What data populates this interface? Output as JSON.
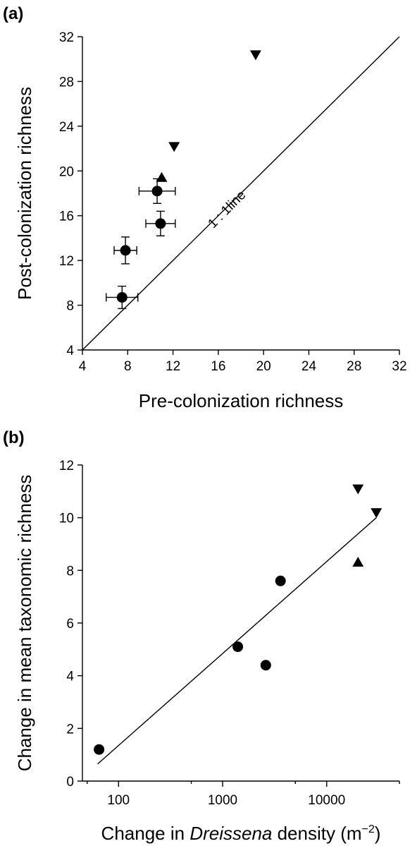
{
  "chart_data": [
    {
      "type": "scatter",
      "panel_label": "(a)",
      "xlabel": "Pre-colonization richness",
      "ylabel": "Post-colonization richness",
      "xlim": [
        4,
        32
      ],
      "ylim": [
        4,
        32
      ],
      "xticks": [
        4,
        8,
        12,
        16,
        20,
        24,
        28,
        32
      ],
      "yticks": [
        4,
        8,
        12,
        16,
        20,
        24,
        28,
        32
      ],
      "xtick_labels": [
        "4",
        "8",
        "12",
        "16",
        "20",
        "24",
        "28",
        "32"
      ],
      "ytick_labels": [
        "4",
        "8",
        "12",
        "16",
        "20",
        "24",
        "28",
        "32"
      ],
      "reference_line": {
        "label": "1 : 1line",
        "from": [
          4,
          4
        ],
        "to": [
          32,
          32
        ]
      },
      "series": [
        {
          "marker": "circle",
          "points": [
            {
              "x": 7.5,
              "y": 8.7,
              "xerr": 1.4,
              "yerr": 1.0
            },
            {
              "x": 7.8,
              "y": 12.9,
              "xerr": 1.0,
              "yerr": 1.2
            },
            {
              "x": 10.6,
              "y": 18.2,
              "xerr": 1.6,
              "yerr": 1.1
            },
            {
              "x": 10.9,
              "y": 15.3,
              "xerr": 1.3,
              "yerr": 1.1
            }
          ]
        },
        {
          "marker": "triangle-up",
          "points": [
            {
              "x": 11.0,
              "y": 19.4
            }
          ]
        },
        {
          "marker": "triangle-down",
          "points": [
            {
              "x": 12.1,
              "y": 22.2
            },
            {
              "x": 19.3,
              "y": 30.4
            }
          ]
        }
      ],
      "grid": false
    },
    {
      "type": "scatter",
      "panel_label": "(b)",
      "xlabel_parts": [
        "Change in ",
        "Dreissena",
        " density (m",
        "−2",
        ")"
      ],
      "ylabel": "Change in mean taxonomic richness",
      "xscale": "log",
      "xlim": [
        45,
        50000
      ],
      "ylim": [
        0,
        12
      ],
      "xticks": [
        100,
        1000,
        10000
      ],
      "xtick_labels": [
        "100",
        "1000",
        "10000"
      ],
      "yticks": [
        0,
        2,
        4,
        6,
        8,
        10,
        12
      ],
      "ytick_labels": [
        "0",
        "2",
        "4",
        "6",
        "8",
        "10",
        "12"
      ],
      "fit_line": {
        "from": [
          63,
          0.65
        ],
        "to": [
          30000,
          10.0
        ]
      },
      "series": [
        {
          "marker": "circle",
          "points": [
            {
              "x": 65,
              "y": 1.2
            },
            {
              "x": 1400,
              "y": 5.1
            },
            {
              "x": 2600,
              "y": 4.4
            },
            {
              "x": 3600,
              "y": 7.6
            }
          ]
        },
        {
          "marker": "triangle-up",
          "points": [
            {
              "x": 20000,
              "y": 8.3
            }
          ]
        },
        {
          "marker": "triangle-down",
          "points": [
            {
              "x": 20000,
              "y": 11.1
            },
            {
              "x": 30000,
              "y": 10.2
            }
          ]
        }
      ],
      "grid": false
    }
  ]
}
